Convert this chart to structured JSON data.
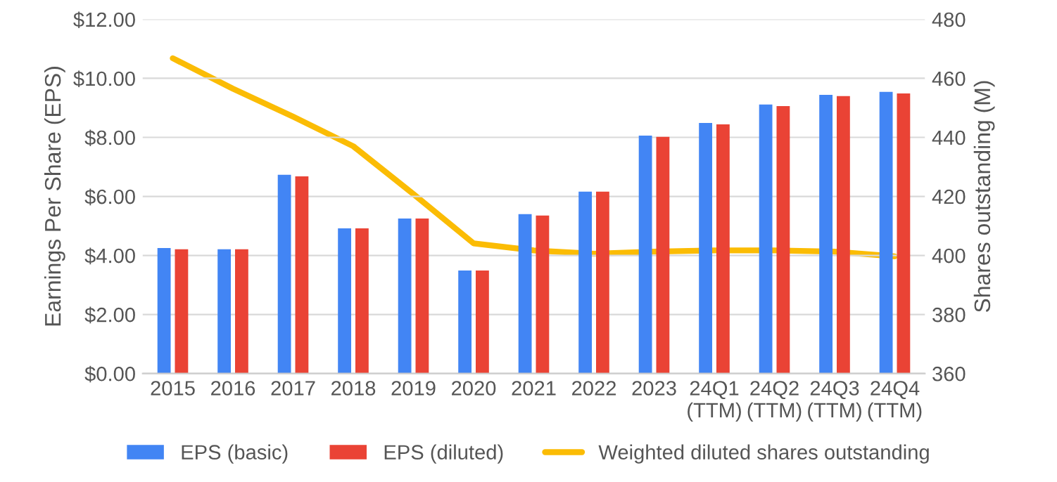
{
  "chart_data": {
    "type": "bar",
    "categories": [
      "2015",
      "2016",
      "2017",
      "2018",
      "2019",
      "2020",
      "2021",
      "2022",
      "2023",
      "24Q1\n(TTM)",
      "24Q2\n(TTM)",
      "24Q3\n(TTM)",
      "24Q4\n(TTM)"
    ],
    "series": [
      {
        "name": "EPS (basic)",
        "color": "#4285f4",
        "values": [
          4.25,
          4.21,
          6.73,
          4.92,
          5.25,
          3.49,
          5.4,
          6.16,
          8.06,
          8.49,
          9.11,
          9.44,
          9.54
        ]
      },
      {
        "name": "EPS (diluted)",
        "color": "#ea4335",
        "values": [
          4.21,
          4.21,
          6.68,
          4.92,
          5.25,
          3.49,
          5.35,
          6.16,
          8.02,
          8.44,
          9.06,
          9.4,
          9.49
        ]
      },
      {
        "name": "Weighted diluted shares outstanding",
        "type": "line",
        "axis": "y2",
        "color": "#fbbc04",
        "values": [
          466.8,
          456.5,
          447,
          437,
          420.8,
          404.1,
          401.7,
          400.6,
          401.3,
          401.7,
          401.7,
          401.3,
          399.7
        ]
      }
    ],
    "ylabel": "Earnings Per Share (EPS)",
    "y2label": "Shares outstanding (M)",
    "ylim": [
      0,
      12
    ],
    "yticks": [
      {
        "value": 0,
        "label": "$0.00"
      },
      {
        "value": 2,
        "label": "$2.00"
      },
      {
        "value": 4,
        "label": "$4.00"
      },
      {
        "value": 6,
        "label": "$6.00"
      },
      {
        "value": 8,
        "label": "$8.00"
      },
      {
        "value": 10,
        "label": "$10.00"
      },
      {
        "value": 12,
        "label": "$12.00"
      }
    ],
    "y2lim": [
      360,
      480
    ],
    "y2ticks": [
      360,
      380,
      400,
      420,
      440,
      460,
      480
    ],
    "grid": "y",
    "legend": "bottom"
  }
}
